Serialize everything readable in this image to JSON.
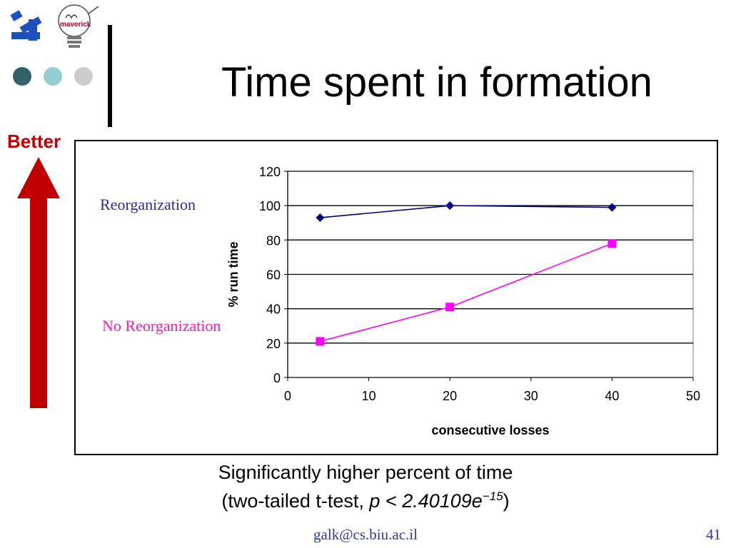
{
  "slide": {
    "title": "Time spent in formation",
    "better_label": "Better",
    "caption_line1": "Significantly higher percent of time",
    "caption_line2_prefix": "(two-tailed t-test, ",
    "caption_line2_formula": "p < 2.40109e",
    "caption_line2_exponent": "−15",
    "caption_line2_suffix": ")",
    "footer_email": "galk@cs.biu.ac.il",
    "slide_number": "41",
    "logo_text": "maverick",
    "colors": {
      "better_arrow": "#c00000",
      "dot1": "#2f6165",
      "dot2": "#93cdd0",
      "dot3": "#cccccc"
    }
  },
  "chart_data": {
    "type": "line",
    "xlabel": "consecutive losses",
    "ylabel": "% run time",
    "xlim": [
      0,
      50
    ],
    "ylim": [
      0,
      120
    ],
    "xticks": [
      0,
      10,
      20,
      30,
      40,
      50
    ],
    "yticks": [
      0,
      20,
      40,
      60,
      80,
      100,
      120
    ],
    "grid": "horizontal",
    "series": [
      {
        "name": "Reorganization",
        "color": "#000080",
        "marker": "diamond",
        "x": [
          4,
          20,
          40
        ],
        "y": [
          93,
          100,
          99
        ]
      },
      {
        "name": "No Reorganization",
        "color": "#ff00ff",
        "marker": "square",
        "x": [
          4,
          20,
          40
        ],
        "y": [
          21,
          41,
          78
        ]
      }
    ]
  }
}
